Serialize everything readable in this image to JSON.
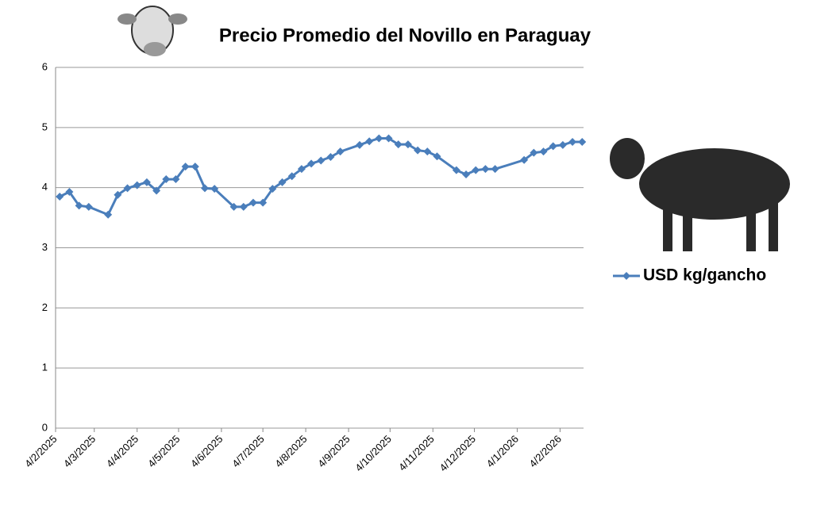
{
  "chart_data": {
    "type": "line",
    "title": "Precio Promedio del Novillo en Paraguay",
    "x": [
      "2025-02-07",
      "2025-02-14",
      "2025-02-21",
      "2025-02-28",
      "2025-03-14",
      "2025-03-21",
      "2025-03-28",
      "2025-04-04",
      "2025-04-11",
      "2025-04-18",
      "2025-04-25",
      "2025-05-02",
      "2025-05-09",
      "2025-05-16",
      "2025-05-23",
      "2025-05-30",
      "2025-06-13",
      "2025-06-20",
      "2025-06-27",
      "2025-07-04",
      "2025-07-11",
      "2025-07-18",
      "2025-07-25",
      "2025-08-01",
      "2025-08-08",
      "2025-08-15",
      "2025-08-22",
      "2025-08-29",
      "2025-09-12",
      "2025-09-19",
      "2025-09-26",
      "2025-10-03",
      "2025-10-10",
      "2025-10-17",
      "2025-10-24",
      "2025-10-31",
      "2025-11-07",
      "2025-11-21",
      "2025-11-28",
      "2025-12-05",
      "2025-12-12",
      "2025-12-19",
      "2026-01-09",
      "2026-01-16",
      "2026-01-23",
      "2026-01-30",
      "2026-02-06",
      "2026-02-13",
      "2026-02-20"
    ],
    "series": [
      {
        "name": "USD kg/gancho",
        "color": "#4a7ebb",
        "values": [
          3.85,
          3.93,
          3.7,
          3.68,
          3.55,
          3.88,
          3.99,
          4.04,
          4.09,
          3.95,
          4.14,
          4.14,
          4.35,
          4.35,
          3.99,
          3.98,
          3.68,
          3.68,
          3.75,
          3.75,
          3.98,
          4.09,
          4.19,
          4.31,
          4.4,
          4.45,
          4.51,
          4.6,
          4.71,
          4.77,
          4.82,
          4.82,
          4.72,
          4.72,
          4.62,
          4.6,
          4.52,
          4.29,
          4.22,
          4.29,
          4.31,
          4.31,
          4.46,
          4.58,
          4.6,
          4.69,
          4.71,
          4.76,
          4.76
        ]
      }
    ],
    "xlim": [
      "2025-02-04",
      "2026-02-21"
    ],
    "xticks": [
      {
        "value": "2025-02-04",
        "label": "4/2/2025"
      },
      {
        "value": "2025-03-04",
        "label": "4/3/2025"
      },
      {
        "value": "2025-04-04",
        "label": "4/4/2025"
      },
      {
        "value": "2025-05-04",
        "label": "4/5/2025"
      },
      {
        "value": "2025-06-04",
        "label": "4/6/2025"
      },
      {
        "value": "2025-07-04",
        "label": "4/7/2025"
      },
      {
        "value": "2025-08-04",
        "label": "4/8/2025"
      },
      {
        "value": "2025-09-04",
        "label": "4/9/2025"
      },
      {
        "value": "2025-10-04",
        "label": "4/10/2025"
      },
      {
        "value": "2025-11-04",
        "label": "4/11/2025"
      },
      {
        "value": "2025-12-04",
        "label": "4/12/2025"
      },
      {
        "value": "2026-01-04",
        "label": "4/1/2026"
      },
      {
        "value": "2026-02-04",
        "label": "4/2/2026"
      }
    ],
    "ylim": [
      0,
      6
    ],
    "yticks": [
      0,
      1,
      2,
      3,
      4,
      5,
      6
    ],
    "grid": true,
    "legend": "right"
  }
}
